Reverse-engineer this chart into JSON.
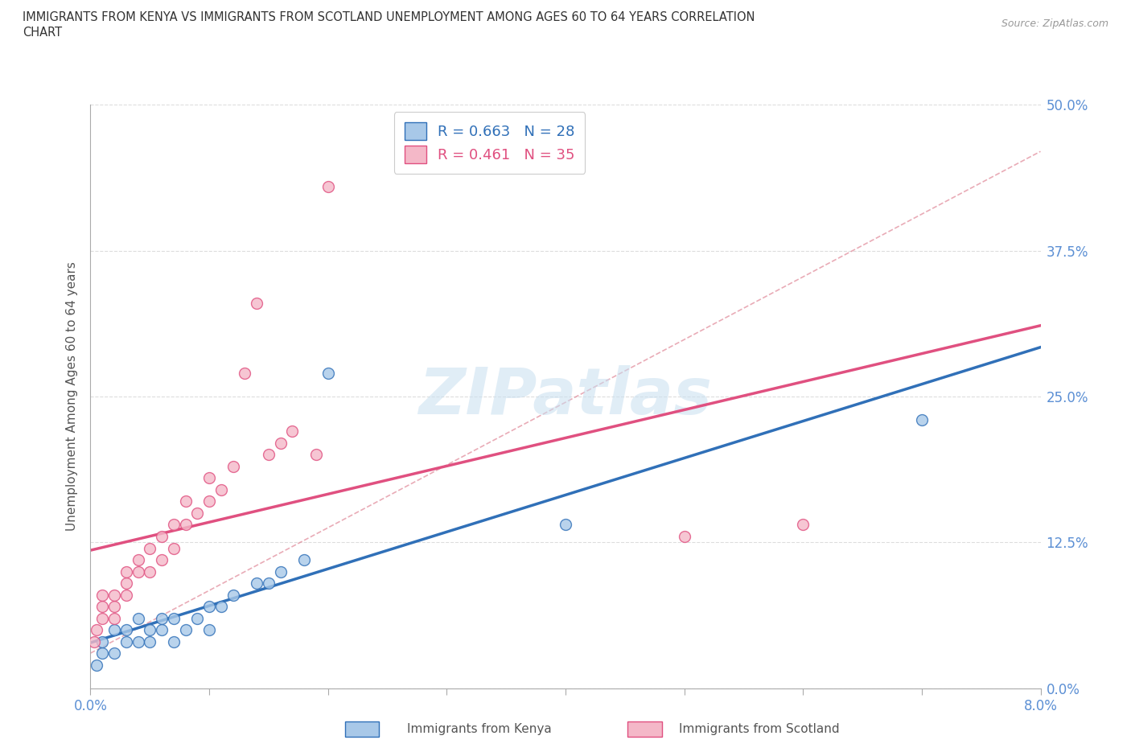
{
  "title_line1": "IMMIGRANTS FROM KENYA VS IMMIGRANTS FROM SCOTLAND UNEMPLOYMENT AMONG AGES 60 TO 64 YEARS CORRELATION",
  "title_line2": "CHART",
  "source": "Source: ZipAtlas.com",
  "ylabel_label": "Unemployment Among Ages 60 to 64 years",
  "legend_kenya": "Immigrants from Kenya",
  "legend_scotland": "Immigrants from Scotland",
  "r_kenya": 0.663,
  "n_kenya": 28,
  "r_scotland": 0.461,
  "n_scotland": 35,
  "color_kenya": "#a8c8e8",
  "color_scotland": "#f4b8c8",
  "trendline_kenya_color": "#3070b8",
  "trendline_scotland_color": "#e05080",
  "dashed_color": "#e08898",
  "watermark": "ZIPatlas",
  "xlim": [
    0.0,
    0.08
  ],
  "ylim": [
    0.0,
    0.5
  ],
  "kenya_x": [
    0.0005,
    0.001,
    0.001,
    0.002,
    0.002,
    0.003,
    0.003,
    0.004,
    0.004,
    0.005,
    0.005,
    0.006,
    0.006,
    0.007,
    0.007,
    0.008,
    0.009,
    0.01,
    0.01,
    0.011,
    0.012,
    0.014,
    0.015,
    0.016,
    0.018,
    0.02,
    0.04,
    0.07
  ],
  "kenya_y": [
    0.02,
    0.03,
    0.04,
    0.03,
    0.05,
    0.04,
    0.05,
    0.04,
    0.06,
    0.04,
    0.05,
    0.05,
    0.06,
    0.04,
    0.06,
    0.05,
    0.06,
    0.05,
    0.07,
    0.07,
    0.08,
    0.09,
    0.09,
    0.1,
    0.11,
    0.27,
    0.14,
    0.23
  ],
  "scotland_x": [
    0.0003,
    0.0005,
    0.001,
    0.001,
    0.001,
    0.002,
    0.002,
    0.002,
    0.003,
    0.003,
    0.003,
    0.004,
    0.004,
    0.005,
    0.005,
    0.006,
    0.006,
    0.007,
    0.007,
    0.008,
    0.008,
    0.009,
    0.01,
    0.01,
    0.011,
    0.012,
    0.013,
    0.014,
    0.015,
    0.016,
    0.017,
    0.019,
    0.02,
    0.05,
    0.06
  ],
  "scotland_y": [
    0.04,
    0.05,
    0.06,
    0.07,
    0.08,
    0.06,
    0.07,
    0.08,
    0.08,
    0.09,
    0.1,
    0.1,
    0.11,
    0.1,
    0.12,
    0.11,
    0.13,
    0.12,
    0.14,
    0.14,
    0.16,
    0.15,
    0.16,
    0.18,
    0.17,
    0.19,
    0.27,
    0.33,
    0.2,
    0.21,
    0.22,
    0.2,
    0.43,
    0.13,
    0.14
  ],
  "background_color": "#ffffff",
  "grid_color": "#dddddd"
}
